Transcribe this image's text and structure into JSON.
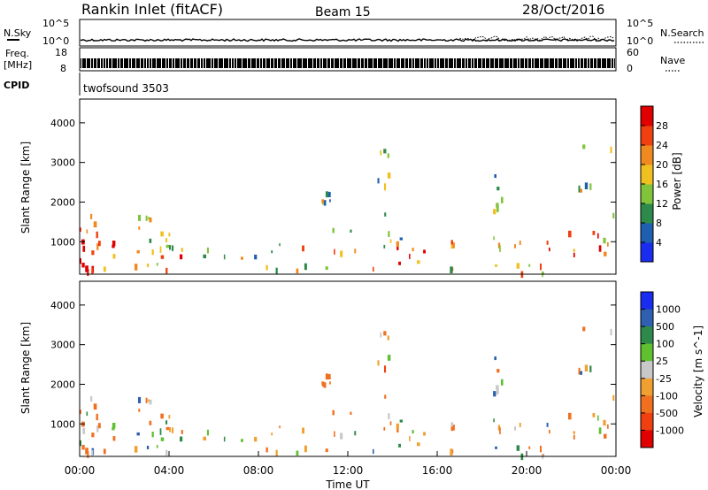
{
  "header": {
    "station": "Rankin Inlet (fitACF)",
    "beam": "Beam 15",
    "date": "28/Oct/2016"
  },
  "top_panels": {
    "nsky": {
      "label": "N.Sky",
      "ticks": [
        "10^5",
        "10^0"
      ],
      "right_label": "N.Search",
      "right_ticks": [
        "10^5",
        "10^0"
      ]
    },
    "freq": {
      "label_line1": "Freq.",
      "label_line2": "[MHz]",
      "ticks": [
        "18",
        "8"
      ],
      "right_label": "Nave",
      "right_ticks": [
        "60",
        "0"
      ]
    },
    "cpid": {
      "label": "CPID",
      "value": "twofsound 3503"
    }
  },
  "chart_data": [
    {
      "type": "heatmap",
      "name": "power",
      "ylabel": "Slant Range [km]",
      "ylim": [
        180,
        4600
      ],
      "yticks": [
        "1000",
        "2000",
        "3000",
        "4000"
      ],
      "ytick_values": [
        1000,
        2000,
        3000,
        4000
      ],
      "colorbar": {
        "label": "Power [dB]",
        "ticks": [
          "4",
          "8",
          "12",
          "16",
          "20",
          "24",
          "28"
        ],
        "range": [
          0,
          31
        ],
        "colors": [
          "#1a2cf0",
          "#1e5fb0",
          "#2e8a4a",
          "#7fc43a",
          "#f0c020",
          "#f08a20",
          "#f04010",
          "#e00000"
        ]
      }
    },
    {
      "type": "heatmap",
      "name": "velocity",
      "ylabel": "Slant Range [km]",
      "ylim": [
        180,
        4600
      ],
      "yticks": [
        "1000",
        "2000",
        "3000",
        "4000"
      ],
      "ytick_values": [
        1000,
        2000,
        3000,
        4000
      ],
      "xlabel": "Time UT",
      "xticks": [
        "00:00",
        "04:00",
        "08:00",
        "12:00",
        "16:00",
        "20:00",
        "00:00"
      ],
      "xtick_values": [
        0,
        4,
        8,
        12,
        16,
        20,
        24
      ],
      "colorbar": {
        "label": "Velocity [m s^-1]",
        "ticks": [
          "1000",
          "500",
          "100",
          "25",
          "-25",
          "-100",
          "-500",
          "-1000"
        ],
        "colors": [
          "#1a2cf0",
          "#2e5fb0",
          "#2e8a4a",
          "#5fc030",
          "#c8c8c8",
          "#f0a030",
          "#f07020",
          "#f04010",
          "#e00000"
        ]
      }
    }
  ]
}
